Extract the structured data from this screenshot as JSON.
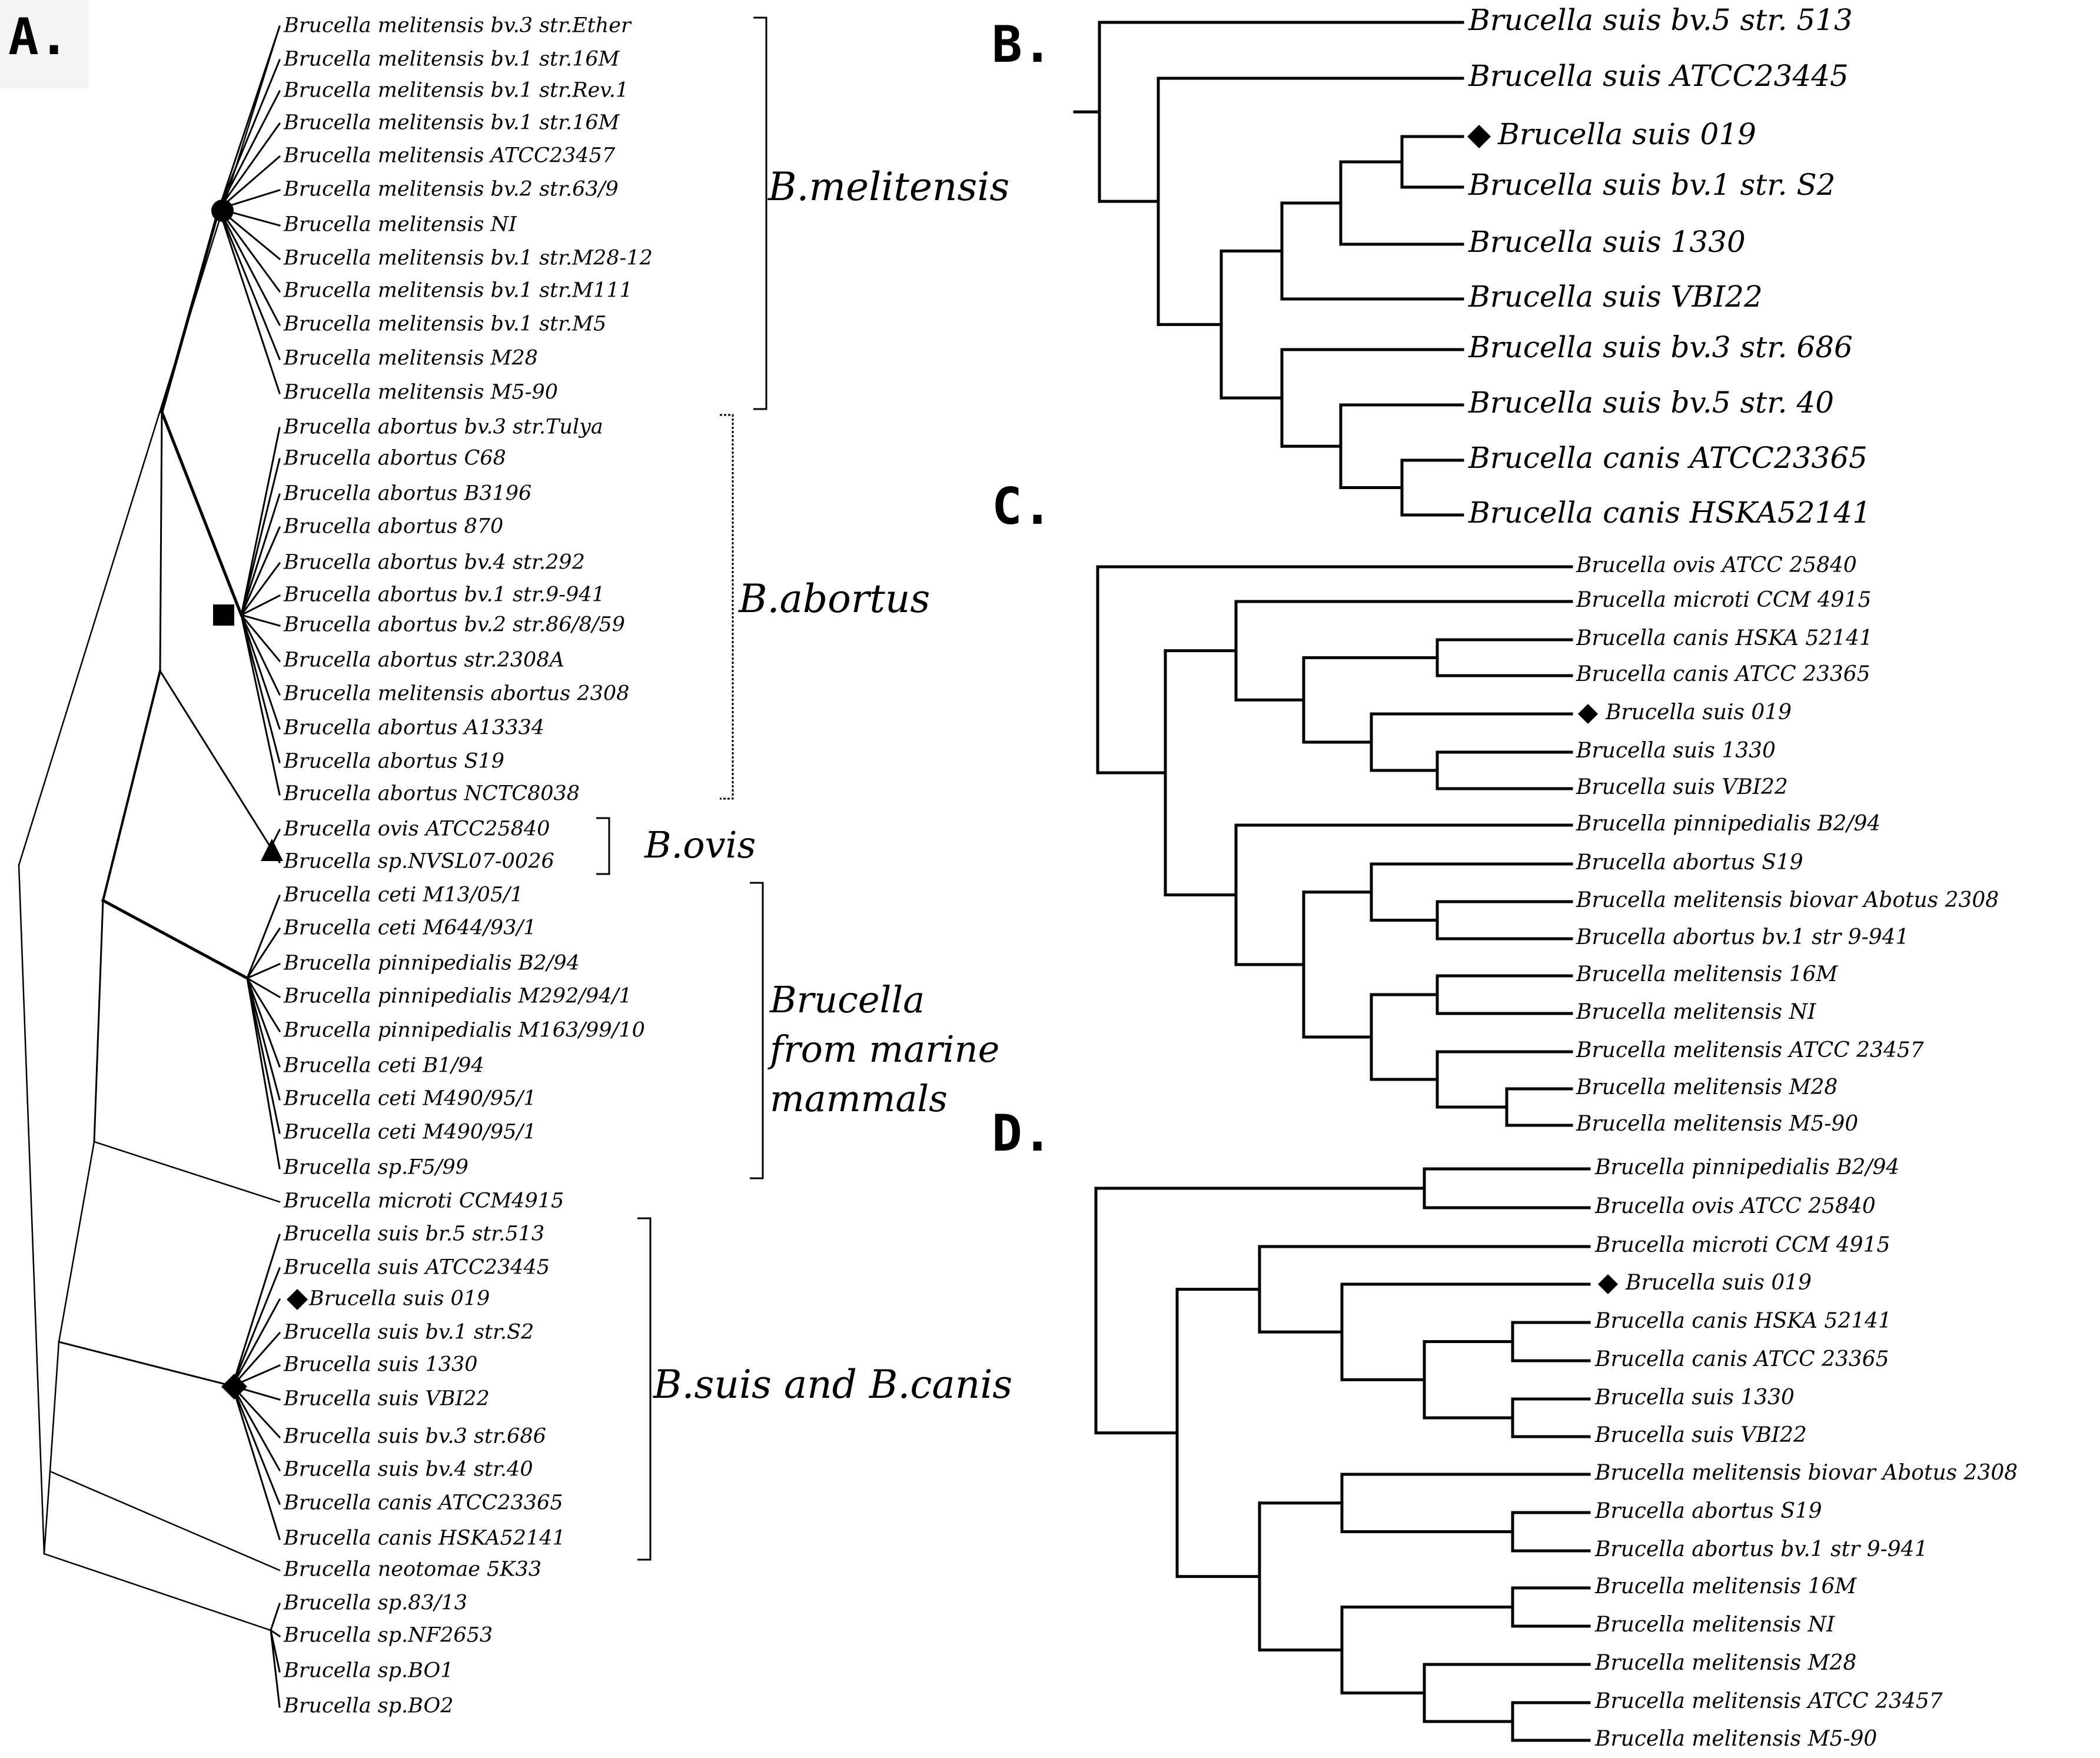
{
  "panels": {
    "A": {
      "letter": "A.",
      "tips": [
        "Brucella melitensis bv.3 str.Ether",
        "Brucella melitensis bv.1 str.16M",
        "Brucella melitensis bv.1 str.Rev.1",
        "Brucella melitensis bv.1 str.16M",
        "Brucella melitensis ATCC23457",
        "Brucella melitensis bv.2 str.63/9",
        "Brucella melitensis NI",
        "Brucella melitensis bv.1 str.M28-12",
        "Brucella melitensis bv.1 str.M111",
        "Brucella melitensis bv.1 str.M5",
        "Brucella melitensis M28",
        "Brucella melitensis M5-90",
        "Brucella abortus bv.3 str.Tulya",
        "Brucella abortus C68",
        "Brucella abortus B3196",
        "Brucella abortus 870",
        "Brucella abortus bv.4 str.292",
        "Brucella abortus bv.1 str.9-941",
        "Brucella abortus bv.2 str.86/8/59",
        "Brucella abortus str.2308A",
        "Brucella melitensis abortus 2308",
        "Brucella abortus A13334",
        "Brucella abortus S19",
        "Brucella abortus NCTC8038",
        "Brucella ovis ATCC25840",
        "Brucella sp.NVSL07-0026",
        "Brucella ceti M13/05/1",
        "Brucella ceti M644/93/1",
        "Brucella pinnipedialis B2/94",
        "Brucella pinnipedialis M292/94/1",
        "Brucella pinnipedialis M163/99/10",
        "Brucella ceti B1/94",
        "Brucella ceti M490/95/1",
        "Brucella ceti M490/95/1",
        "Brucella sp.F5/99",
        "Brucella microti CCM4915",
        "Brucella suis br.5 str.513",
        "Brucella suis ATCC23445",
        "Brucella suis 019",
        "Brucella suis bv.1 str.S2",
        "Brucella suis 1330",
        "Brucella suis VBI22",
        "Brucella suis bv.3 str.686",
        "Brucella suis bv.4 str.40",
        "Brucella canis ATCC23365",
        "Brucella canis HSKA52141",
        "Brucella neotomae 5K33",
        "Brucella sp.83/13",
        "Brucella sp.NF2653",
        "Brucella sp.BO1",
        "Brucella sp.BO2"
      ],
      "clades": [
        {
          "label_lines": [
            "B.melitensis"
          ],
          "marker": "circle",
          "marker_name": "circle-marker"
        },
        {
          "label_lines": [
            "B.abortus"
          ],
          "marker": "square",
          "marker_name": "square-marker"
        },
        {
          "label_lines": [
            "B.ovis"
          ],
          "marker": "triangle",
          "marker_name": "triangle-marker"
        },
        {
          "label_lines": [
            "Brucella",
            "from marine",
            "mammals"
          ],
          "marker": "none",
          "marker_name": ""
        },
        {
          "label_lines": [
            "B.suis and B.canis"
          ],
          "marker": "diamond",
          "marker_name": "diamond-marker"
        }
      ]
    },
    "B": {
      "letter": "B.",
      "tips": [
        "Brucella suis bv.5 str. 513",
        "Brucella suis ATCC23445",
        "Brucella suis 019",
        "Brucella suis bv.1 str. S2",
        "Brucella suis 1330",
        "Brucella suis VBI22",
        "Brucella suis bv.3 str. 686",
        "Brucella suis bv.5 str. 40",
        "Brucella canis ATCC23365",
        "Brucella canis HSKA52141"
      ],
      "marked_tip": "Brucella suis 019"
    },
    "C": {
      "letter": "C.",
      "tips": [
        "Brucella ovis ATCC 25840",
        "Brucella microti CCM 4915",
        "Brucella canis HSKA 52141",
        "Brucella canis ATCC 23365",
        "Brucella suis 019",
        "Brucella suis 1330",
        "Brucella suis VBI22",
        "Brucella pinnipedialis B2/94",
        "Brucella abortus S19",
        "Brucella melitensis biovar Abotus 2308",
        "Brucella abortus bv.1 str 9-941",
        "Brucella melitensis 16M",
        "Brucella melitensis NI",
        "Brucella melitensis ATCC 23457",
        "Brucella melitensis M28",
        "Brucella melitensis M5-90"
      ],
      "marked_tip": "Brucella suis 019"
    },
    "D": {
      "letter": "D.",
      "tips": [
        "Brucella pinnipedialis B2/94",
        "Brucella ovis ATCC 25840",
        "Brucella microti CCM 4915",
        "Brucella suis 019",
        "Brucella canis HSKA 52141",
        "Brucella canis ATCC 23365",
        "Brucella suis 1330",
        "Brucella suis VBI22",
        "Brucella melitensis biovar Abotus 2308",
        "Brucella abortus S19",
        "Brucella abortus bv.1 str 9-941",
        "Brucella melitensis 16M",
        "Brucella melitensis NI",
        "Brucella melitensis M28",
        "Brucella melitensis ATCC 23457",
        "Brucella melitensis M5-90"
      ],
      "marked_tip": "Brucella suis 019"
    }
  }
}
